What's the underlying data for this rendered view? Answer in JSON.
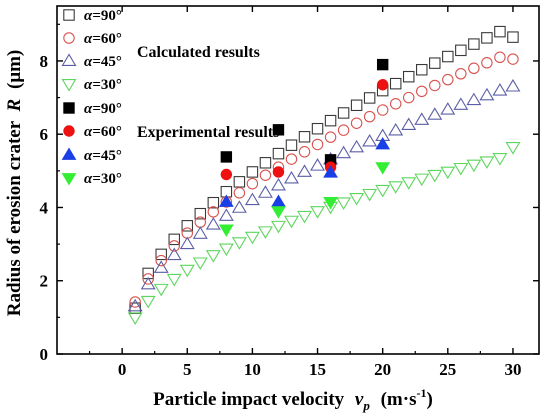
{
  "chart_data": {
    "type": "scatter",
    "xlabel": "Particle impact velocity",
    "xlabel_symbol": "v",
    "xlabel_subscript": "p",
    "xlabel_unit_prefix": "(m·s",
    "xlabel_unit_exp": "-1",
    "xlabel_unit_suffix": ")",
    "ylabel": "Radius of erosion crater",
    "ylabel_symbol": "R",
    "ylabel_unit": "(μm)",
    "xlim": [
      -5,
      32
    ],
    "ylim": [
      0,
      9.5
    ],
    "xticks": [
      0,
      5,
      10,
      15,
      20,
      25,
      30
    ],
    "yticks": [
      0,
      2,
      4,
      6,
      8
    ],
    "grid": false,
    "legend_position": "top-left",
    "legend_groups": [
      "Calculated results",
      "Experimental results"
    ],
    "series": [
      {
        "name": "α=90°",
        "alpha": "α",
        "value_label": "=90°",
        "group": "Calculated results",
        "marker": "square-open",
        "color": "#3a3a3a",
        "x": [
          1,
          2,
          3,
          4,
          5,
          6,
          7,
          8,
          9,
          10,
          11,
          12,
          13,
          14,
          15,
          16,
          17,
          18,
          19,
          20,
          21,
          22,
          23,
          24,
          25,
          26,
          27,
          28,
          29,
          30
        ],
        "y": [
          1.25,
          2.2,
          2.72,
          3.13,
          3.5,
          3.83,
          4.13,
          4.43,
          4.7,
          4.97,
          5.22,
          5.47,
          5.7,
          5.93,
          6.15,
          6.37,
          6.58,
          6.79,
          6.99,
          7.19,
          7.38,
          7.57,
          7.76,
          7.94,
          8.12,
          8.29,
          8.46,
          8.63,
          8.8,
          8.65
        ]
      },
      {
        "name": "α=60°",
        "alpha": "α",
        "value_label": "=60°",
        "group": "Calculated results",
        "marker": "circle-open",
        "color": "#d9534f",
        "x": [
          1,
          2,
          3,
          4,
          5,
          6,
          7,
          8,
          9,
          10,
          11,
          12,
          13,
          14,
          15,
          16,
          17,
          18,
          19,
          20,
          21,
          22,
          23,
          24,
          25,
          26,
          27,
          28,
          29,
          30
        ],
        "y": [
          1.42,
          2.05,
          2.55,
          2.95,
          3.3,
          3.6,
          3.88,
          4.15,
          4.4,
          4.65,
          4.88,
          5.1,
          5.32,
          5.52,
          5.72,
          5.92,
          6.11,
          6.3,
          6.48,
          6.66,
          6.83,
          7.0,
          7.17,
          7.33,
          7.49,
          7.65,
          7.8,
          7.95,
          8.1,
          8.05
        ]
      },
      {
        "name": "α=45°",
        "alpha": "α",
        "value_label": "=45°",
        "group": "Calculated results",
        "marker": "triangle-up-open",
        "color": "#5b5ea6",
        "x": [
          1,
          2,
          3,
          4,
          5,
          6,
          7,
          8,
          9,
          10,
          11,
          12,
          13,
          14,
          15,
          16,
          17,
          18,
          19,
          20,
          21,
          22,
          23,
          24,
          25,
          26,
          27,
          28,
          29,
          30
        ],
        "y": [
          1.3,
          1.9,
          2.35,
          2.7,
          3.0,
          3.28,
          3.53,
          3.77,
          3.99,
          4.2,
          4.4,
          4.6,
          4.79,
          4.97,
          5.14,
          5.31,
          5.48,
          5.64,
          5.8,
          5.95,
          6.1,
          6.25,
          6.39,
          6.53,
          6.67,
          6.8,
          6.93,
          7.06,
          7.19,
          7.3
        ]
      },
      {
        "name": "α=30°",
        "alpha": "α",
        "value_label": "=30°",
        "group": "Calculated results",
        "marker": "triangle-down-open",
        "color": "#5cd65c",
        "x": [
          1,
          2,
          3,
          4,
          5,
          6,
          7,
          8,
          9,
          10,
          11,
          12,
          13,
          14,
          15,
          16,
          17,
          18,
          19,
          20,
          21,
          22,
          23,
          24,
          25,
          26,
          27,
          28,
          29,
          30
        ],
        "y": [
          1.0,
          1.45,
          1.78,
          2.05,
          2.3,
          2.5,
          2.7,
          2.88,
          3.05,
          3.2,
          3.35,
          3.5,
          3.64,
          3.77,
          3.9,
          4.02,
          4.14,
          4.26,
          4.37,
          4.48,
          4.58,
          4.69,
          4.79,
          4.89,
          4.98,
          5.08,
          5.17,
          5.26,
          5.35,
          5.65
        ]
      },
      {
        "name": "α=90°",
        "alpha": "α",
        "value_label": "=90°",
        "group": "Experimental results",
        "marker": "square-filled",
        "color": "#000000",
        "x": [
          8,
          12,
          16,
          20
        ],
        "y": [
          5.38,
          6.12,
          5.3,
          7.9
        ]
      },
      {
        "name": "α=60°",
        "alpha": "α",
        "value_label": "=60°",
        "group": "Experimental results",
        "marker": "circle-filled",
        "color": "#ee1111",
        "x": [
          8,
          12,
          16,
          20
        ],
        "y": [
          4.9,
          4.97,
          5.1,
          7.35
        ]
      },
      {
        "name": "α=45°",
        "alpha": "α",
        "value_label": "=45°",
        "group": "Experimental results",
        "marker": "triangle-up-filled",
        "color": "#1a3fe6",
        "x": [
          8,
          12,
          16,
          20
        ],
        "y": [
          4.15,
          4.15,
          4.95,
          5.72
        ]
      },
      {
        "name": "α=30°",
        "alpha": "α",
        "value_label": "=30°",
        "group": "Experimental results",
        "marker": "triangle-down-filled",
        "color": "#33ee33",
        "x": [
          8,
          12,
          16,
          20
        ],
        "y": [
          3.4,
          3.9,
          4.15,
          5.1
        ]
      }
    ]
  }
}
